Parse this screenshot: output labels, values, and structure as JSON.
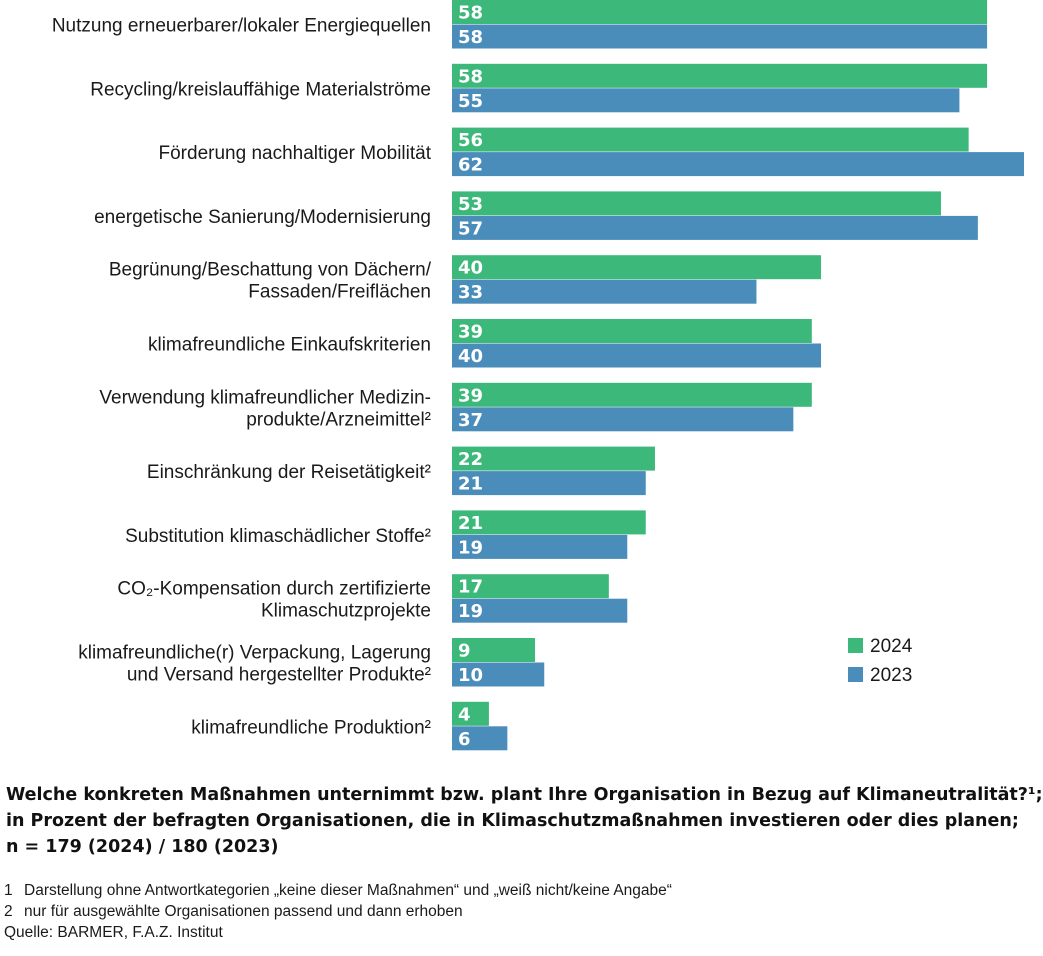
{
  "chart_data": {
    "type": "bar",
    "orientation": "horizontal",
    "categories": [
      [
        "Nutzung erneuerbarer/lokaler Energiequellen"
      ],
      [
        "Recycling/kreislauffähige Materialströme"
      ],
      [
        "Förderung nachhaltiger Mobilität"
      ],
      [
        "energetische Sanierung/Modernisierung"
      ],
      [
        "Begrünung/Beschattung von Dächern/",
        "Fassaden/Freiflächen"
      ],
      [
        "klimafreundliche Einkaufskriterien"
      ],
      [
        "Verwendung klimafreundlicher Medizin-",
        "produkte/Arzneimittel²"
      ],
      [
        "Einschränkung der Reisetätigkeit²"
      ],
      [
        "Substitution klimaschädlicher Stoffe²"
      ],
      [
        "CO₂-Kompensation durch zertifizierte",
        "Klimaschutzprojekte"
      ],
      [
        "klimafreundliche(r) Verpackung, Lagerung",
        "und Versand hergestellter Produkte²"
      ],
      [
        "klimafreundliche Produktion²"
      ]
    ],
    "series": [
      {
        "name": "2024",
        "color": "#3cb87a",
        "values": [
          58,
          58,
          56,
          53,
          40,
          39,
          39,
          22,
          21,
          17,
          9,
          4
        ]
      },
      {
        "name": "2023",
        "color": "#4a8dbb",
        "values": [
          58,
          55,
          62,
          57,
          33,
          40,
          37,
          21,
          19,
          19,
          10,
          6
        ]
      }
    ],
    "xlim": [
      0,
      62
    ],
    "grid": false,
    "legend_position": "bottom-right"
  },
  "caption": {
    "line1": "Welche konkreten Maßnahmen unternimmt bzw. plant Ihre Organisation in Bezug auf Klimaneutralität?¹;",
    "line2": "in Prozent der befragten Organisationen, die in Klimaschutzmaßnahmen investieren oder dies planen;",
    "line3": "n = 179 (2024) / 180 (2023)"
  },
  "footnotes": [
    {
      "num": "1",
      "text": "Darstellung ohne Antwortkategorien „keine dieser Maßnahmen“ und „weiß nicht/keine Angabe“"
    },
    {
      "num": "2",
      "text": "nur für ausgewählte Organisationen passend und dann erhoben"
    }
  ],
  "source": "Quelle: BARMER, F.A.Z. Institut"
}
